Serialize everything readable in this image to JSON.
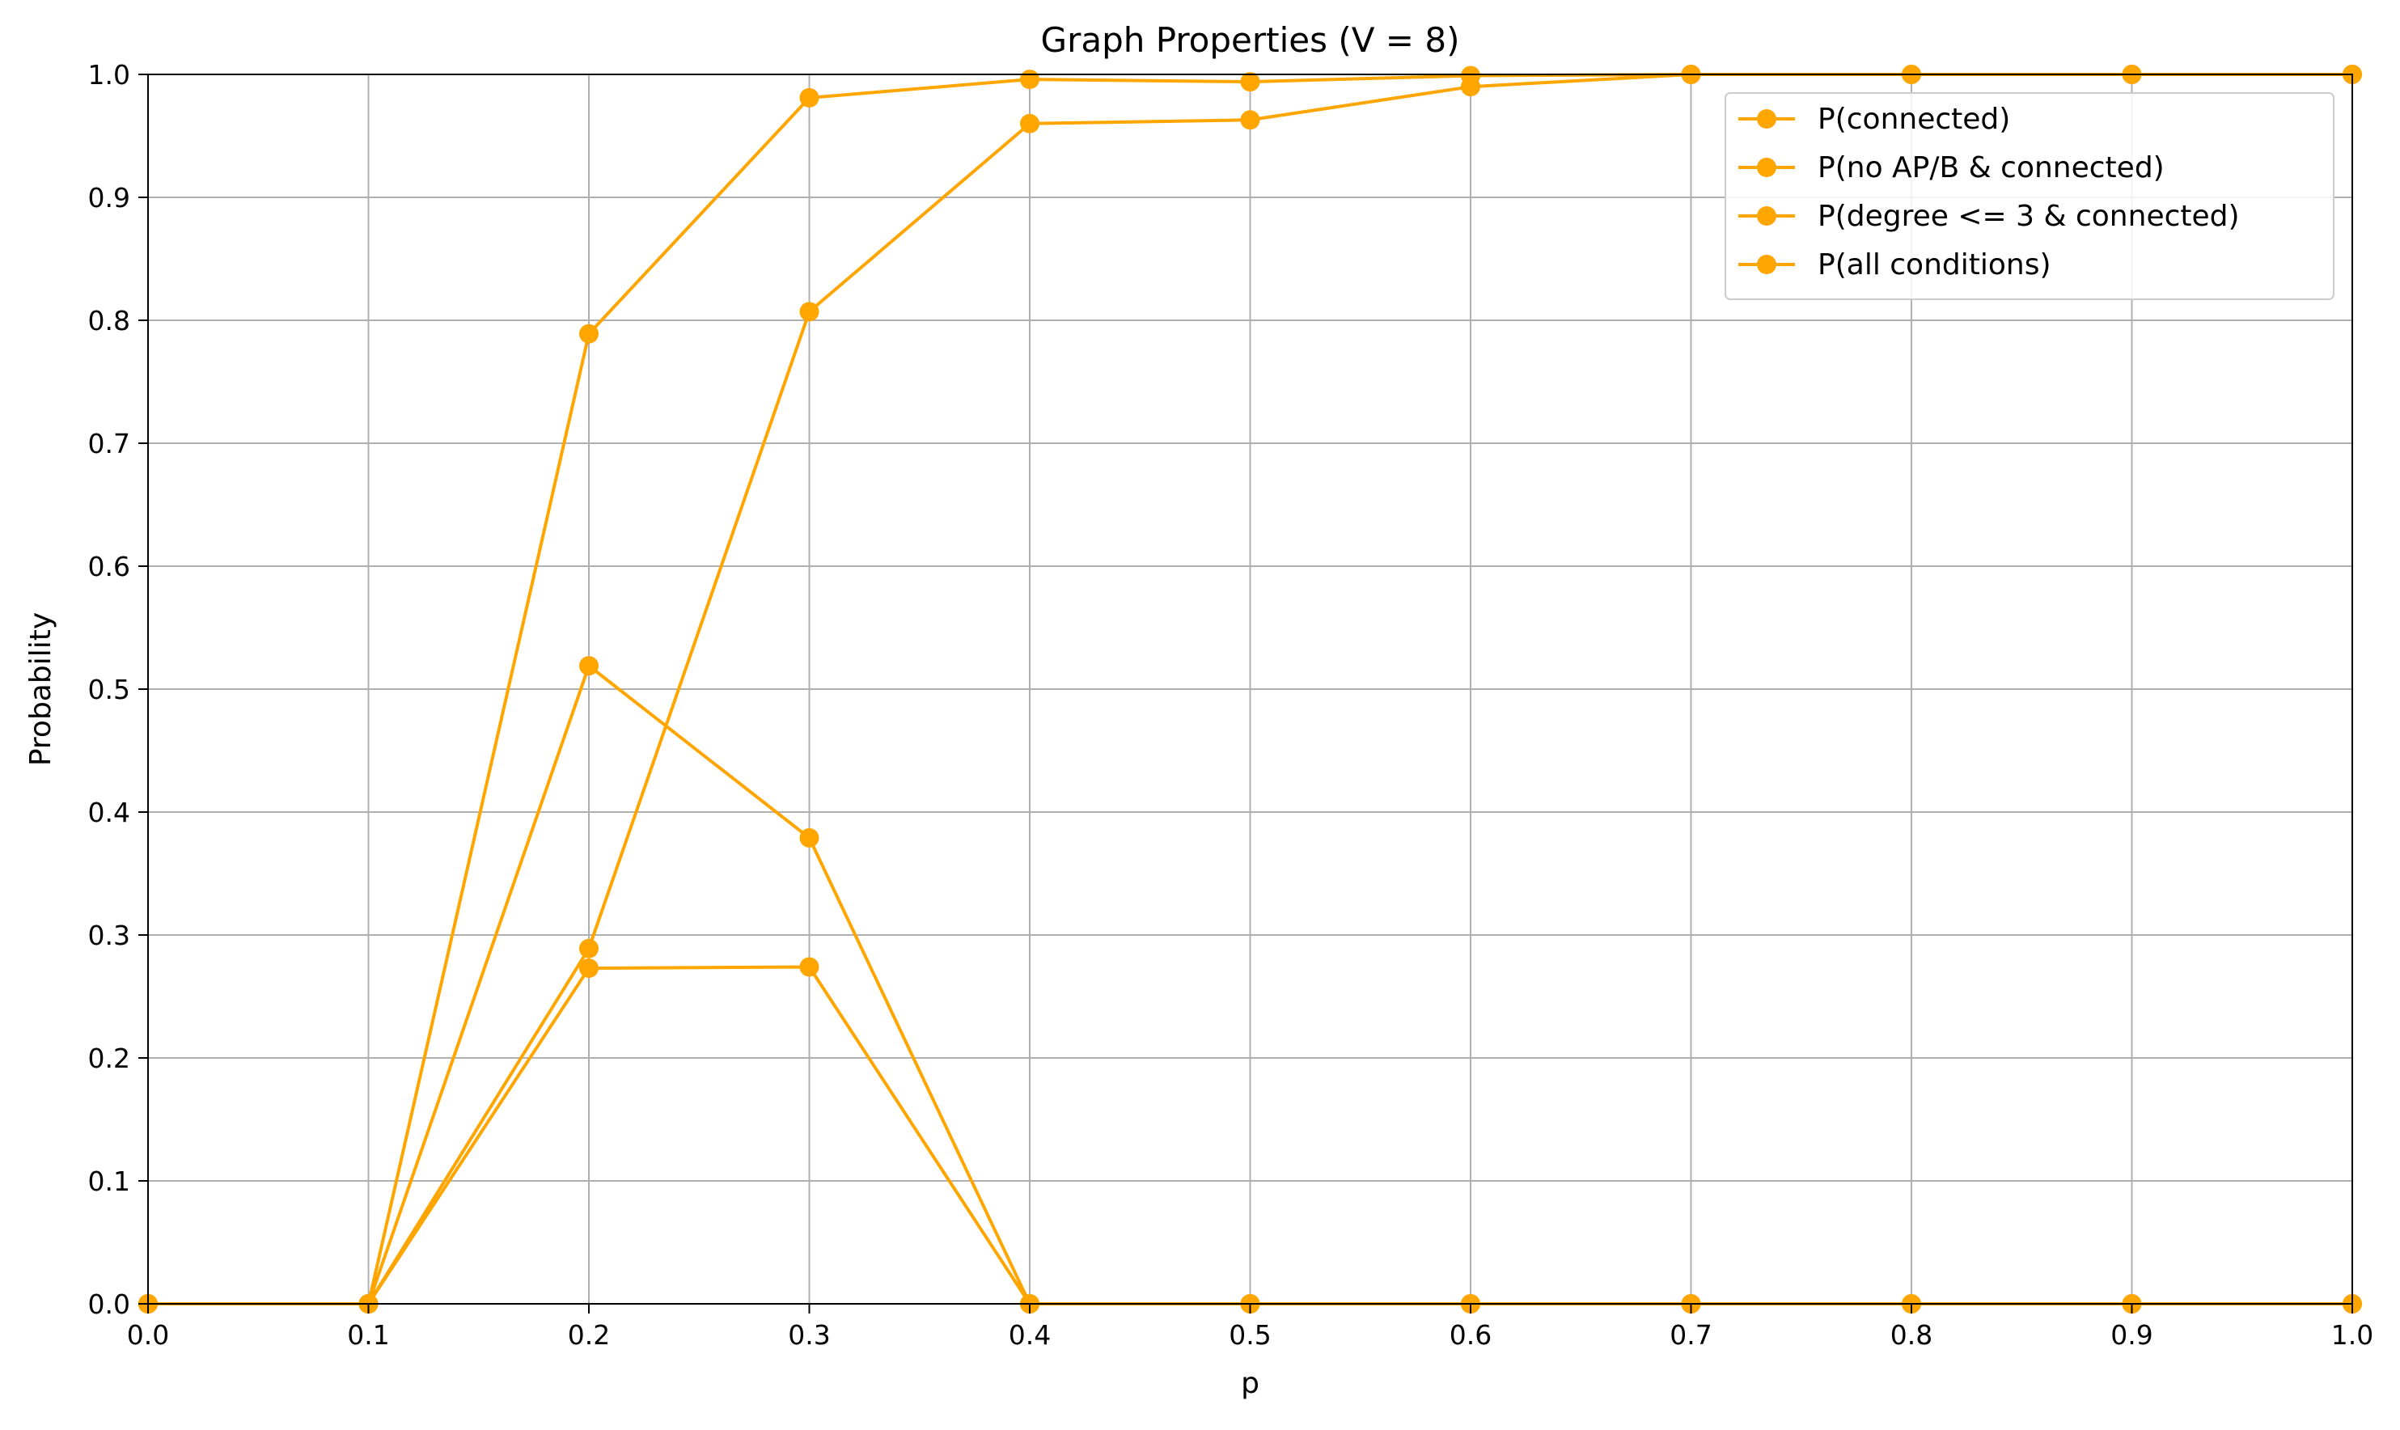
{
  "chart_data": {
    "type": "line",
    "title": "Graph Properties (V = 8)",
    "xlabel": "p",
    "ylabel": "Probability",
    "xlim": [
      0.0,
      1.0
    ],
    "ylim": [
      0.0,
      1.0
    ],
    "xticks": [
      "0.0",
      "0.1",
      "0.2",
      "0.3",
      "0.4",
      "0.5",
      "0.6",
      "0.7",
      "0.8",
      "0.9",
      "1.0"
    ],
    "yticks": [
      "0.0",
      "0.1",
      "0.2",
      "0.3",
      "0.4",
      "0.5",
      "0.6",
      "0.7",
      "0.8",
      "0.9",
      "1.0"
    ],
    "grid": true,
    "legend_position": "top-right",
    "x": [
      0.0,
      0.1,
      0.2,
      0.3,
      0.4,
      0.5,
      0.6,
      0.7,
      0.8,
      0.9,
      1.0
    ],
    "series": [
      {
        "name": "P(connected)",
        "color": "#ffa500",
        "values": [
          0.0,
          0.0,
          0.789,
          0.981,
          0.996,
          0.994,
          0.999,
          1.0,
          1.0,
          1.0,
          1.0
        ]
      },
      {
        "name": "P(no AP/B & connected)",
        "color": "#ffa500",
        "values": [
          0.0,
          0.0,
          0.289,
          0.807,
          0.96,
          0.963,
          0.99,
          1.0,
          1.0,
          1.0,
          1.0
        ]
      },
      {
        "name": "P(degree <= 3 & connected)",
        "color": "#ffa500",
        "values": [
          0.0,
          0.0,
          0.519,
          0.379,
          0.0,
          0.0,
          0.0,
          0.0,
          0.0,
          0.0,
          0.0
        ]
      },
      {
        "name": "P(all conditions)",
        "color": "#ffa500",
        "values": [
          0.0,
          0.0,
          0.273,
          0.274,
          0.0,
          0.0,
          0.0,
          0.0,
          0.0,
          0.0,
          0.0
        ]
      }
    ]
  }
}
